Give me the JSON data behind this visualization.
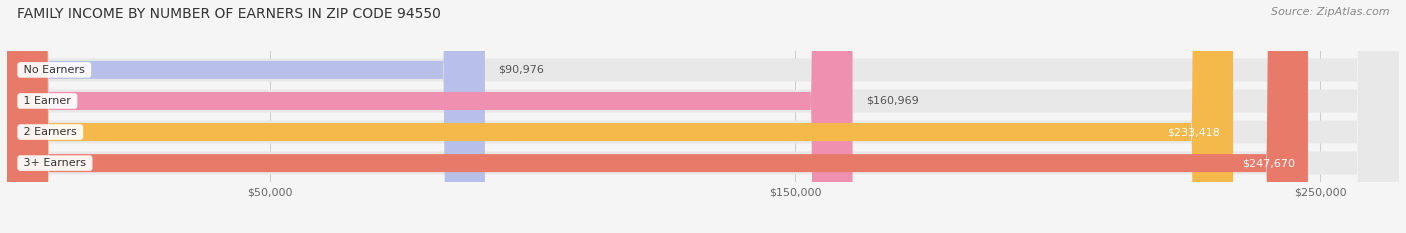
{
  "title": "FAMILY INCOME BY NUMBER OF EARNERS IN ZIP CODE 94550",
  "source": "Source: ZipAtlas.com",
  "categories": [
    "No Earners",
    "1 Earner",
    "2 Earners",
    "3+ Earners"
  ],
  "values": [
    90976,
    160969,
    233418,
    247670
  ],
  "bar_colors": [
    "#b8bfe8",
    "#f090b0",
    "#f5b84a",
    "#e87a6a"
  ],
  "bar_bg_color": "#e8e8e8",
  "label_colors": [
    "#555555",
    "#555555",
    "#ffffff",
    "#ffffff"
  ],
  "max_value": 265000,
  "xticks": [
    50000,
    150000,
    250000
  ],
  "xtick_labels": [
    "$50,000",
    "$150,000",
    "$250,000"
  ],
  "background_color": "#f5f5f5",
  "title_fontsize": 10,
  "source_fontsize": 8,
  "bar_label_fontsize": 8,
  "category_fontsize": 8
}
